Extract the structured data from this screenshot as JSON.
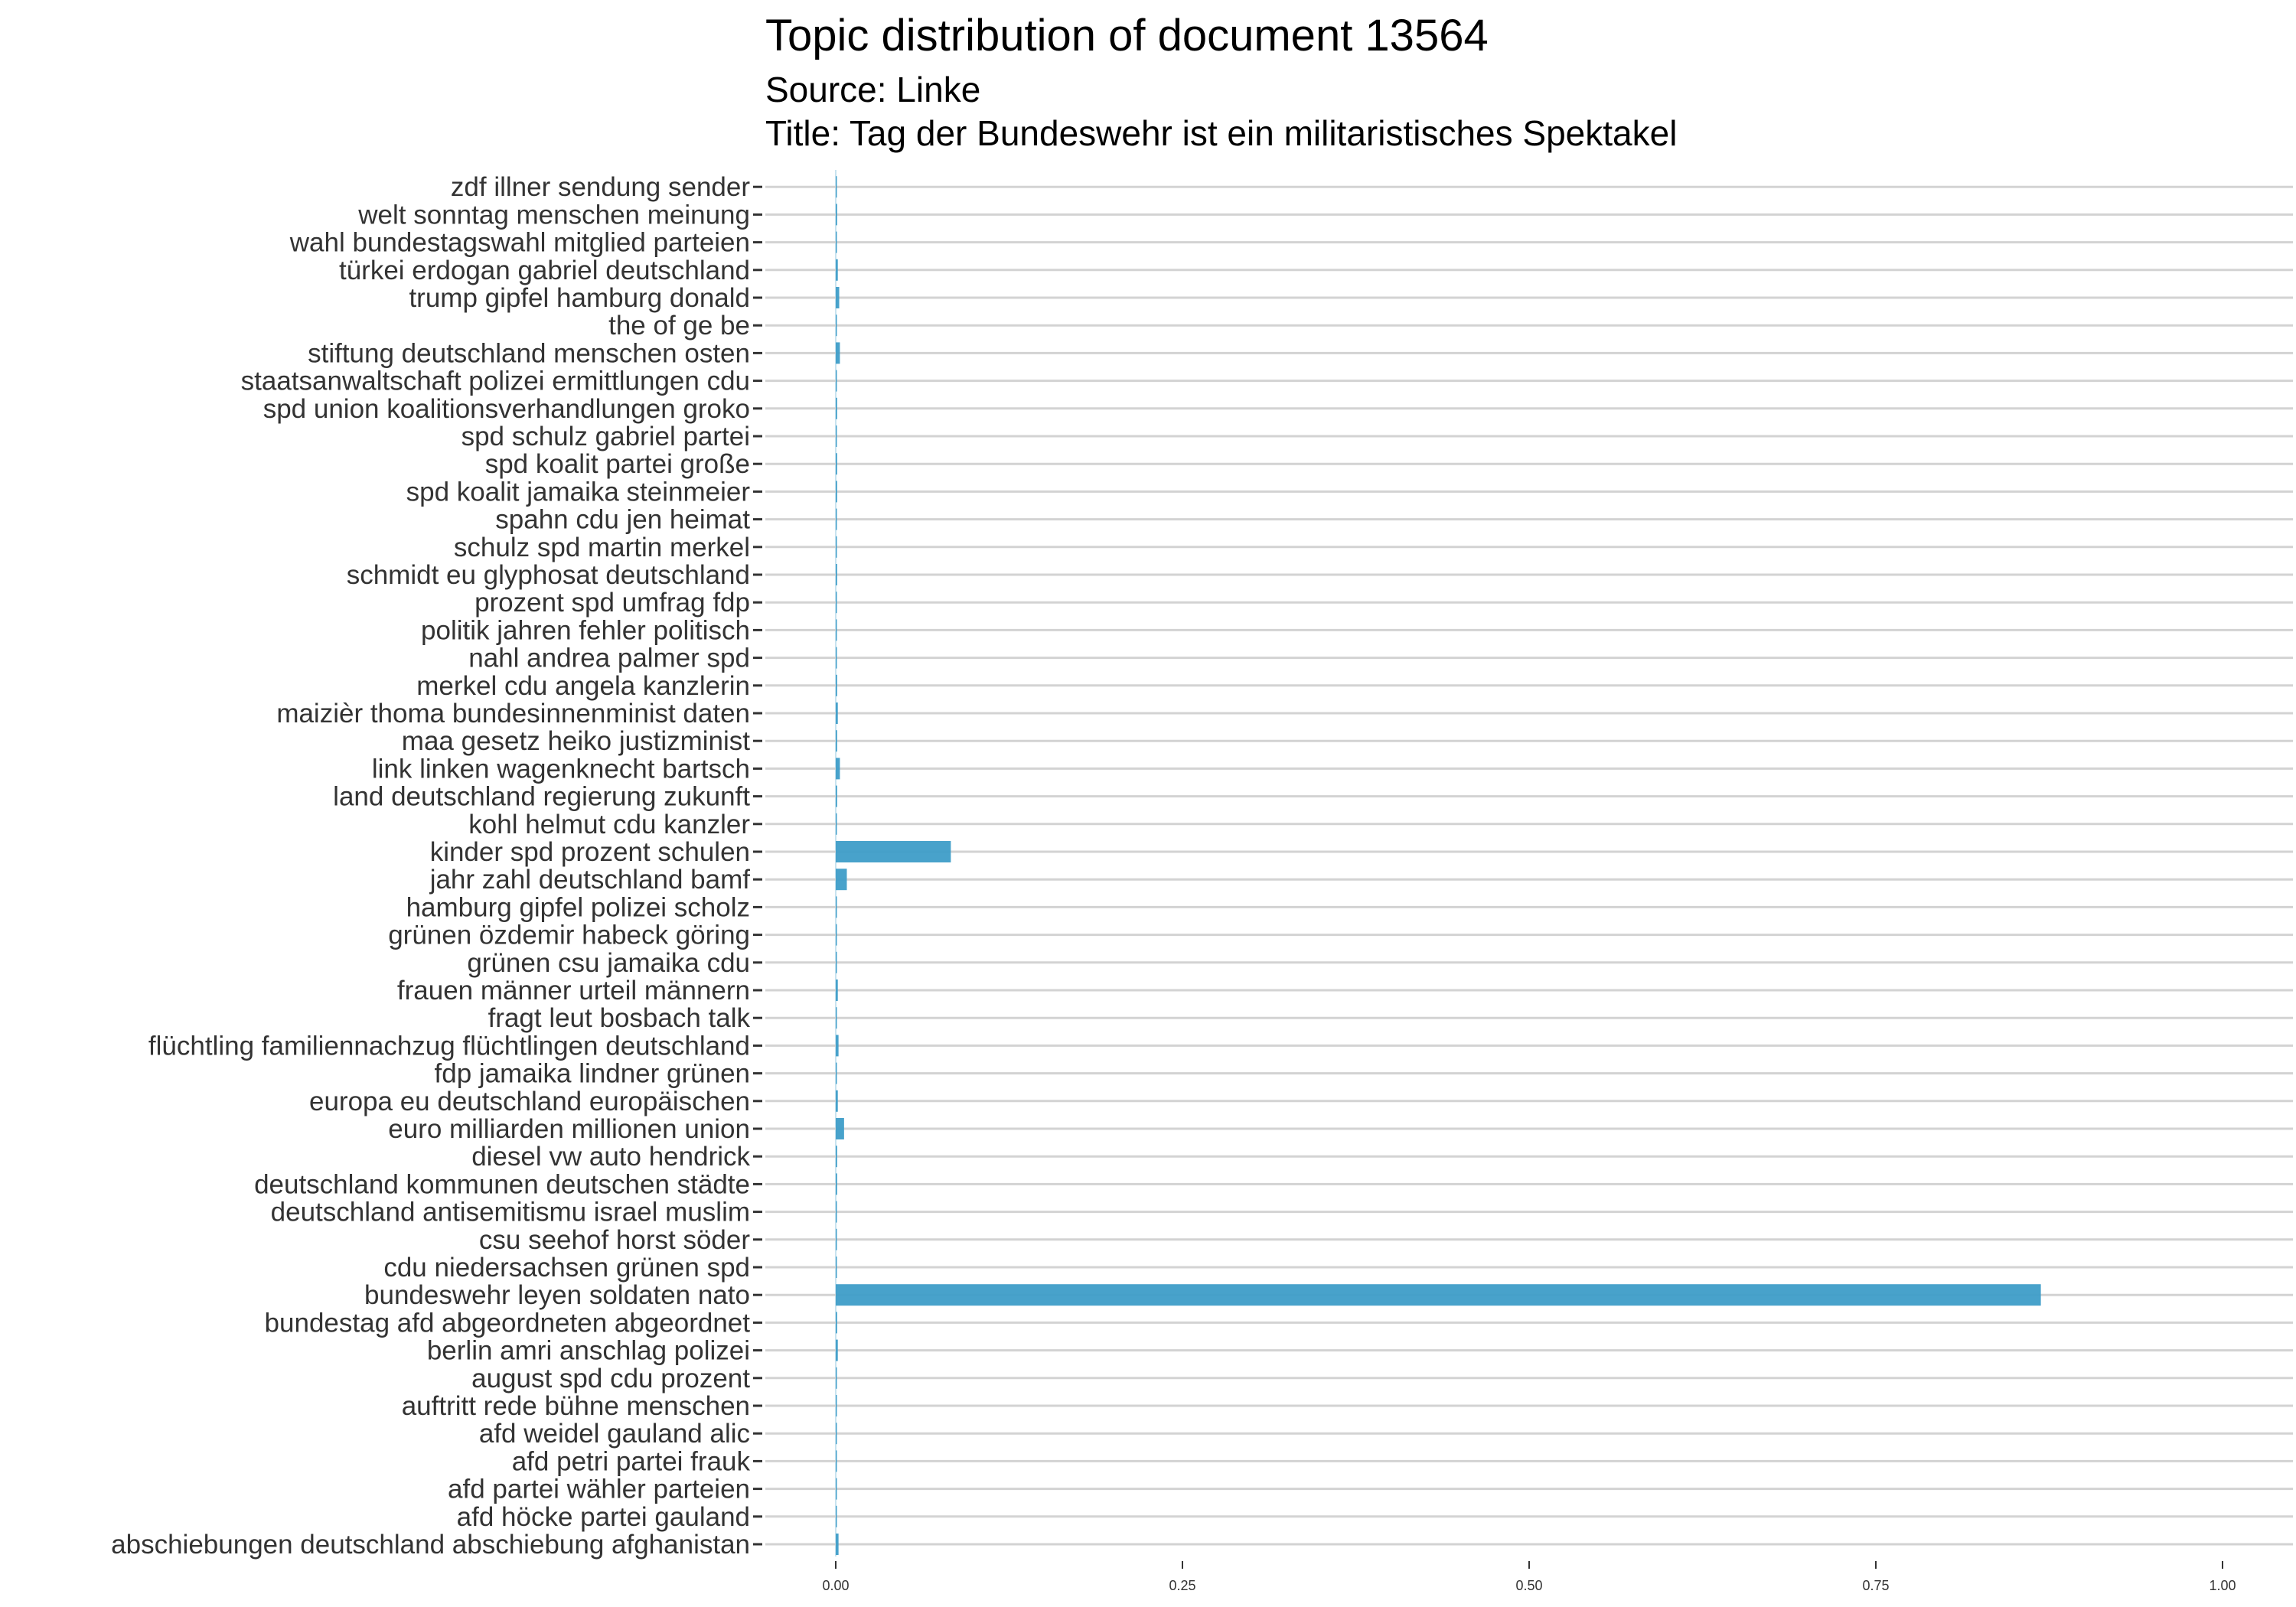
{
  "chart_data": {
    "type": "bar",
    "orientation": "horizontal",
    "title": "Topic distribution of document 13564",
    "subtitle": "Source: Linke",
    "subtitle2": "Title: Tag der Bundeswehr ist ein militaristisches Spektakel",
    "xlim": [
      0,
      1
    ],
    "x_ticks": [
      "0.00",
      "0.25",
      "0.50",
      "0.75",
      "1.00"
    ],
    "bar_color": "#3e9dc8",
    "grid": true,
    "categories": [
      "abschiebungen deutschland abschiebung afghanistan",
      "afd höcke partei gauland",
      "afd partei wähler parteien",
      "afd petri partei frauk",
      "afd weidel gauland alic",
      "auftritt rede bühne menschen",
      "august spd cdu prozent",
      "berlin amri anschlag polizei",
      "bundestag afd abgeordneten abgeordnet",
      "bundeswehr leyen soldaten nato",
      "cdu niedersachsen grünen spd",
      "csu seehof horst söder",
      "deutschland antisemitismu israel muslim",
      "deutschland kommunen deutschen städte",
      "diesel vw auto hendrick",
      "euro milliarden millionen union",
      "europa eu deutschland europäischen",
      "fdp jamaika lindner grünen",
      "flüchtling familiennachzug flüchtlingen deutschland",
      "fragt leut bosbach talk",
      "frauen männer urteil männern",
      "grünen csu jamaika cdu",
      "grünen özdemir habeck göring",
      "hamburg gipfel polizei scholz",
      "jahr zahl deutschland bamf",
      "kinder spd prozent schulen",
      "kohl helmut cdu kanzler",
      "land deutschland regierung zukunft",
      "link linken wagenknecht bartsch",
      "maa gesetz heiko justizminist",
      "maizièr thoma bundesinnenminist daten",
      "merkel cdu angela kanzlerin",
      "nahl andrea palmer spd",
      "politik jahren fehler politisch",
      "prozent spd umfrag fdp",
      "schmidt eu glyphosat deutschland",
      "schulz spd martin merkel",
      "spahn cdu jen heimat",
      "spd koalit jamaika steinmeier",
      "spd koalit partei große",
      "spd schulz gabriel partei",
      "spd union koalitionsverhandlungen groko",
      "staatsanwaltschaft polizei ermittlungen cdu",
      "stiftung deutschland menschen osten",
      "the of ge be",
      "trump gipfel hamburg donald",
      "türkei erdogan gabriel deutschland",
      "wahl bundestagswahl mitglied parteien",
      "welt sonntag menschen meinung",
      "zdf illner sendung sender"
    ],
    "values": [
      0.002,
      0.0005,
      0.0005,
      0.0005,
      0.0005,
      0.0005,
      0.0005,
      0.0015,
      0.001,
      0.869,
      0.0005,
      0.0005,
      0.0005,
      0.001,
      0.001,
      0.006,
      0.0015,
      0.0005,
      0.002,
      0.0005,
      0.0015,
      0.0005,
      0.0005,
      0.0005,
      0.008,
      0.083,
      0.0005,
      0.001,
      0.003,
      0.001,
      0.0015,
      0.001,
      0.0005,
      0.0005,
      0.0005,
      0.001,
      0.0005,
      0.0005,
      0.001,
      0.001,
      0.0005,
      0.001,
      0.0005,
      0.003,
      0.0005,
      0.0025,
      0.0015,
      0.0005,
      0.001,
      0.0005
    ]
  }
}
